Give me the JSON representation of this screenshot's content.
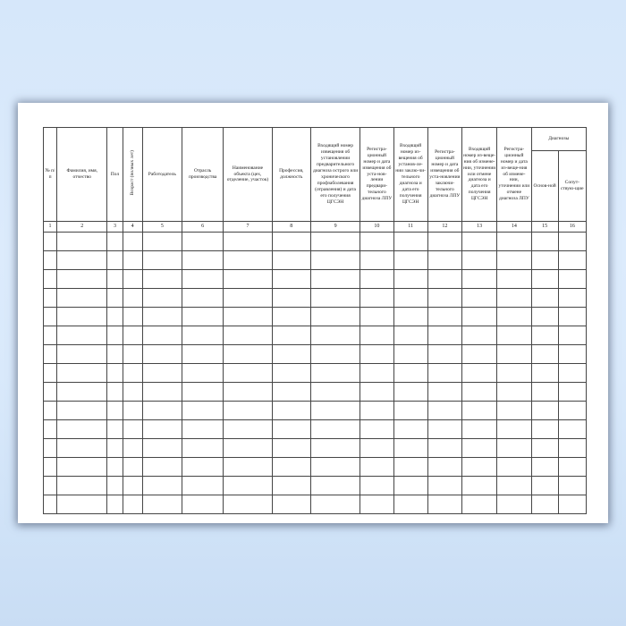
{
  "page": {
    "background_color": "#d6e7fa",
    "paper_color": "#ffffff",
    "border_color": "#454545"
  },
  "table": {
    "headers": {
      "col1": "№ п/п",
      "col2": "Фамилия, имя, отчество",
      "col3": "Пол",
      "col4": "Возраст (полных лет)",
      "col5": "Работодатель",
      "col6": "Отрасль производства",
      "col7": "Наименование объекта (цех, отделение, участок)",
      "col8": "Профессия, должность",
      "col9": "Входящий номер извещения об установлении предварительного диагноза острого или хронического профзаболевания (отравления) и дата его получения ЦГСЭН",
      "col10": "Регистра-ционный номер и дата извещения об уста-нов-лении предвари-тельного диагноза ЛПУ",
      "col11": "Входящий номер из-вещения об установ-ле-нии заклю-чи-тельного диагноза и дата его получения ЦГСЭН",
      "col12": "Регистра-ционный номер и дата извещения об уста-новлении заключи-тельного диагноза ЛПУ",
      "col13": "Входящий номер из-веще-ния об измене-нии, уточнении или отмене диагноза и дата его получения ЦГСЭН",
      "col14": "Регистра-ционный номер и дата из-веще-ния об измене-нии, уточнении или отмене диагноза ЛПУ",
      "diagnoses_group": "Диагнозы",
      "col15": "Основ-ной",
      "col16": "Сопут-ствую-щие"
    },
    "column_numbers": [
      "1",
      "2",
      "3",
      "4",
      "5",
      "6",
      "7",
      "8",
      "9",
      "10",
      "11",
      "12",
      "13",
      "14",
      "15",
      "16"
    ],
    "data_rows": 15,
    "cell_values": ""
  }
}
